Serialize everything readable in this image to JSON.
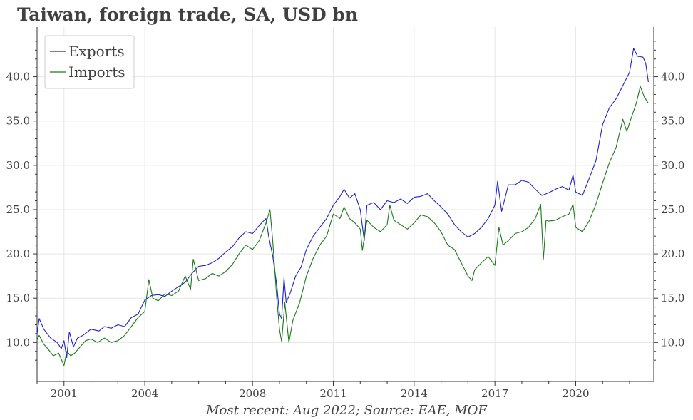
{
  "title": "Taiwan, foreign trade, SA, USD bn",
  "footer": "Most recent: Aug 2022; Source: EAE, MOF",
  "chart_data": {
    "type": "line",
    "title": "Taiwan, foreign trade, SA, USD bn",
    "xlabel": "",
    "ylabel": "",
    "xlim": [
      2000.0,
      2022.9
    ],
    "ylim": [
      5.6,
      45.6
    ],
    "x_ticks": [
      2001,
      2004,
      2008,
      2011,
      2014,
      2017,
      2020
    ],
    "y_ticks": [
      10.0,
      15.0,
      20.0,
      25.0,
      30.0,
      35.0,
      40.0
    ],
    "grid": true,
    "legend_position": "top-left",
    "colors": {
      "Exports": "#1f22cc",
      "Imports": "#1a7a1a"
    },
    "series": [
      {
        "name": "Exports",
        "points": [
          [
            2000.0,
            11.0
          ],
          [
            2000.08,
            12.7
          ],
          [
            2000.25,
            11.5
          ],
          [
            2000.5,
            10.5
          ],
          [
            2000.75,
            10.0
          ],
          [
            2000.9,
            9.3
          ],
          [
            2001.0,
            10.2
          ],
          [
            2001.1,
            8.3
          ],
          [
            2001.2,
            11.2
          ],
          [
            2001.35,
            9.5
          ],
          [
            2001.5,
            10.5
          ],
          [
            2001.7,
            10.8
          ],
          [
            2002.0,
            11.5
          ],
          [
            2002.3,
            11.3
          ],
          [
            2002.5,
            11.8
          ],
          [
            2002.75,
            11.6
          ],
          [
            2003.0,
            12.0
          ],
          [
            2003.25,
            11.8
          ],
          [
            2003.5,
            12.8
          ],
          [
            2003.75,
            13.2
          ],
          [
            2004.0,
            14.8
          ],
          [
            2004.25,
            15.3
          ],
          [
            2004.5,
            15.4
          ],
          [
            2004.75,
            15.2
          ],
          [
            2005.0,
            15.8
          ],
          [
            2005.25,
            16.3
          ],
          [
            2005.5,
            16.8
          ],
          [
            2005.75,
            17.8
          ],
          [
            2006.0,
            18.6
          ],
          [
            2006.25,
            18.7
          ],
          [
            2006.5,
            19.0
          ],
          [
            2006.75,
            19.5
          ],
          [
            2007.0,
            20.2
          ],
          [
            2007.25,
            20.8
          ],
          [
            2007.5,
            21.8
          ],
          [
            2007.75,
            22.5
          ],
          [
            2008.0,
            22.3
          ],
          [
            2008.25,
            23.2
          ],
          [
            2008.5,
            24.0
          ],
          [
            2008.6,
            22.0
          ],
          [
            2008.75,
            19.8
          ],
          [
            2008.9,
            16.5
          ],
          [
            2009.0,
            13.2
          ],
          [
            2009.08,
            12.7
          ],
          [
            2009.17,
            17.3
          ],
          [
            2009.25,
            14.5
          ],
          [
            2009.4,
            15.6
          ],
          [
            2009.6,
            17.5
          ],
          [
            2009.8,
            18.5
          ],
          [
            2010.0,
            20.5
          ],
          [
            2010.25,
            22.0
          ],
          [
            2010.5,
            23.0
          ],
          [
            2010.75,
            24.0
          ],
          [
            2011.0,
            25.5
          ],
          [
            2011.25,
            26.5
          ],
          [
            2011.4,
            27.3
          ],
          [
            2011.6,
            26.3
          ],
          [
            2011.8,
            26.8
          ],
          [
            2012.0,
            25.0
          ],
          [
            2012.15,
            21.5
          ],
          [
            2012.25,
            25.5
          ],
          [
            2012.5,
            25.8
          ],
          [
            2012.75,
            25.0
          ],
          [
            2013.0,
            26.0
          ],
          [
            2013.25,
            25.8
          ],
          [
            2013.5,
            26.2
          ],
          [
            2013.75,
            25.7
          ],
          [
            2014.0,
            26.4
          ],
          [
            2014.25,
            26.5
          ],
          [
            2014.5,
            26.8
          ],
          [
            2014.75,
            26.0
          ],
          [
            2015.0,
            25.3
          ],
          [
            2015.25,
            24.5
          ],
          [
            2015.5,
            23.3
          ],
          [
            2015.75,
            22.5
          ],
          [
            2016.0,
            21.9
          ],
          [
            2016.25,
            22.3
          ],
          [
            2016.5,
            23.0
          ],
          [
            2016.75,
            24.0
          ],
          [
            2017.0,
            25.5
          ],
          [
            2017.1,
            28.2
          ],
          [
            2017.25,
            24.8
          ],
          [
            2017.5,
            27.8
          ],
          [
            2017.75,
            27.8
          ],
          [
            2018.0,
            28.3
          ],
          [
            2018.25,
            28.1
          ],
          [
            2018.5,
            27.3
          ],
          [
            2018.75,
            26.6
          ],
          [
            2019.0,
            26.9
          ],
          [
            2019.25,
            27.3
          ],
          [
            2019.5,
            27.6
          ],
          [
            2019.75,
            27.2
          ],
          [
            2019.9,
            28.9
          ],
          [
            2020.0,
            27.0
          ],
          [
            2020.25,
            26.6
          ],
          [
            2020.5,
            28.5
          ],
          [
            2020.75,
            30.5
          ],
          [
            2021.0,
            34.6
          ],
          [
            2021.25,
            36.5
          ],
          [
            2021.5,
            37.5
          ],
          [
            2021.75,
            39.0
          ],
          [
            2022.0,
            40.5
          ],
          [
            2022.15,
            43.2
          ],
          [
            2022.3,
            42.3
          ],
          [
            2022.5,
            42.2
          ],
          [
            2022.6,
            41.5
          ],
          [
            2022.7,
            39.4
          ]
        ]
      },
      {
        "name": "Imports",
        "points": [
          [
            2000.0,
            10.3
          ],
          [
            2000.08,
            10.8
          ],
          [
            2000.25,
            9.8
          ],
          [
            2000.4,
            9.3
          ],
          [
            2000.6,
            8.5
          ],
          [
            2000.8,
            8.8
          ],
          [
            2001.0,
            7.4
          ],
          [
            2001.1,
            9.0
          ],
          [
            2001.25,
            8.5
          ],
          [
            2001.4,
            8.8
          ],
          [
            2001.6,
            9.5
          ],
          [
            2001.8,
            10.2
          ],
          [
            2002.0,
            10.4
          ],
          [
            2002.25,
            10.0
          ],
          [
            2002.5,
            10.5
          ],
          [
            2002.75,
            10.0
          ],
          [
            2003.0,
            10.2
          ],
          [
            2003.25,
            10.8
          ],
          [
            2003.5,
            11.8
          ],
          [
            2003.75,
            12.8
          ],
          [
            2004.0,
            13.5
          ],
          [
            2004.15,
            17.1
          ],
          [
            2004.3,
            15.0
          ],
          [
            2004.5,
            14.7
          ],
          [
            2004.75,
            15.5
          ],
          [
            2005.0,
            15.3
          ],
          [
            2005.25,
            15.8
          ],
          [
            2005.5,
            17.5
          ],
          [
            2005.7,
            16.0
          ],
          [
            2005.8,
            19.4
          ],
          [
            2006.0,
            17.0
          ],
          [
            2006.25,
            17.2
          ],
          [
            2006.5,
            17.8
          ],
          [
            2006.75,
            17.5
          ],
          [
            2007.0,
            18.0
          ],
          [
            2007.25,
            18.8
          ],
          [
            2007.5,
            20.0
          ],
          [
            2007.75,
            21.0
          ],
          [
            2008.0,
            20.5
          ],
          [
            2008.25,
            21.5
          ],
          [
            2008.5,
            23.5
          ],
          [
            2008.65,
            25.0
          ],
          [
            2008.75,
            21.5
          ],
          [
            2008.9,
            15.0
          ],
          [
            2009.0,
            11.5
          ],
          [
            2009.08,
            10.1
          ],
          [
            2009.2,
            14.5
          ],
          [
            2009.35,
            10.0
          ],
          [
            2009.5,
            12.5
          ],
          [
            2009.75,
            14.5
          ],
          [
            2010.0,
            17.5
          ],
          [
            2010.25,
            19.5
          ],
          [
            2010.5,
            21.0
          ],
          [
            2010.75,
            22.0
          ],
          [
            2011.0,
            24.5
          ],
          [
            2011.25,
            24.0
          ],
          [
            2011.4,
            25.3
          ],
          [
            2011.6,
            24.0
          ],
          [
            2011.8,
            23.5
          ],
          [
            2012.0,
            22.8
          ],
          [
            2012.08,
            20.4
          ],
          [
            2012.25,
            23.8
          ],
          [
            2012.5,
            23.0
          ],
          [
            2012.75,
            22.5
          ],
          [
            2013.0,
            23.3
          ],
          [
            2013.1,
            25.5
          ],
          [
            2013.25,
            23.8
          ],
          [
            2013.5,
            23.3
          ],
          [
            2013.75,
            22.8
          ],
          [
            2014.0,
            23.5
          ],
          [
            2014.25,
            24.4
          ],
          [
            2014.5,
            24.2
          ],
          [
            2014.75,
            23.5
          ],
          [
            2015.0,
            22.5
          ],
          [
            2015.25,
            21.0
          ],
          [
            2015.5,
            20.5
          ],
          [
            2015.75,
            19.0
          ],
          [
            2016.0,
            17.5
          ],
          [
            2016.15,
            17.0
          ],
          [
            2016.25,
            18.2
          ],
          [
            2016.5,
            19.0
          ],
          [
            2016.75,
            19.7
          ],
          [
            2017.0,
            18.7
          ],
          [
            2017.15,
            23.0
          ],
          [
            2017.3,
            21.0
          ],
          [
            2017.5,
            21.5
          ],
          [
            2017.75,
            22.3
          ],
          [
            2018.0,
            22.5
          ],
          [
            2018.25,
            23.0
          ],
          [
            2018.5,
            24.0
          ],
          [
            2018.7,
            25.6
          ],
          [
            2018.8,
            19.4
          ],
          [
            2018.9,
            23.8
          ],
          [
            2019.0,
            23.7
          ],
          [
            2019.25,
            23.8
          ],
          [
            2019.5,
            24.2
          ],
          [
            2019.75,
            24.5
          ],
          [
            2019.9,
            25.6
          ],
          [
            2020.0,
            23.0
          ],
          [
            2020.25,
            22.5
          ],
          [
            2020.5,
            23.7
          ],
          [
            2020.75,
            25.6
          ],
          [
            2021.0,
            28.0
          ],
          [
            2021.25,
            30.3
          ],
          [
            2021.5,
            32.0
          ],
          [
            2021.75,
            35.2
          ],
          [
            2021.9,
            33.8
          ],
          [
            2022.0,
            34.8
          ],
          [
            2022.25,
            37.0
          ],
          [
            2022.4,
            38.9
          ],
          [
            2022.55,
            37.7
          ],
          [
            2022.7,
            37.0
          ]
        ]
      }
    ]
  }
}
